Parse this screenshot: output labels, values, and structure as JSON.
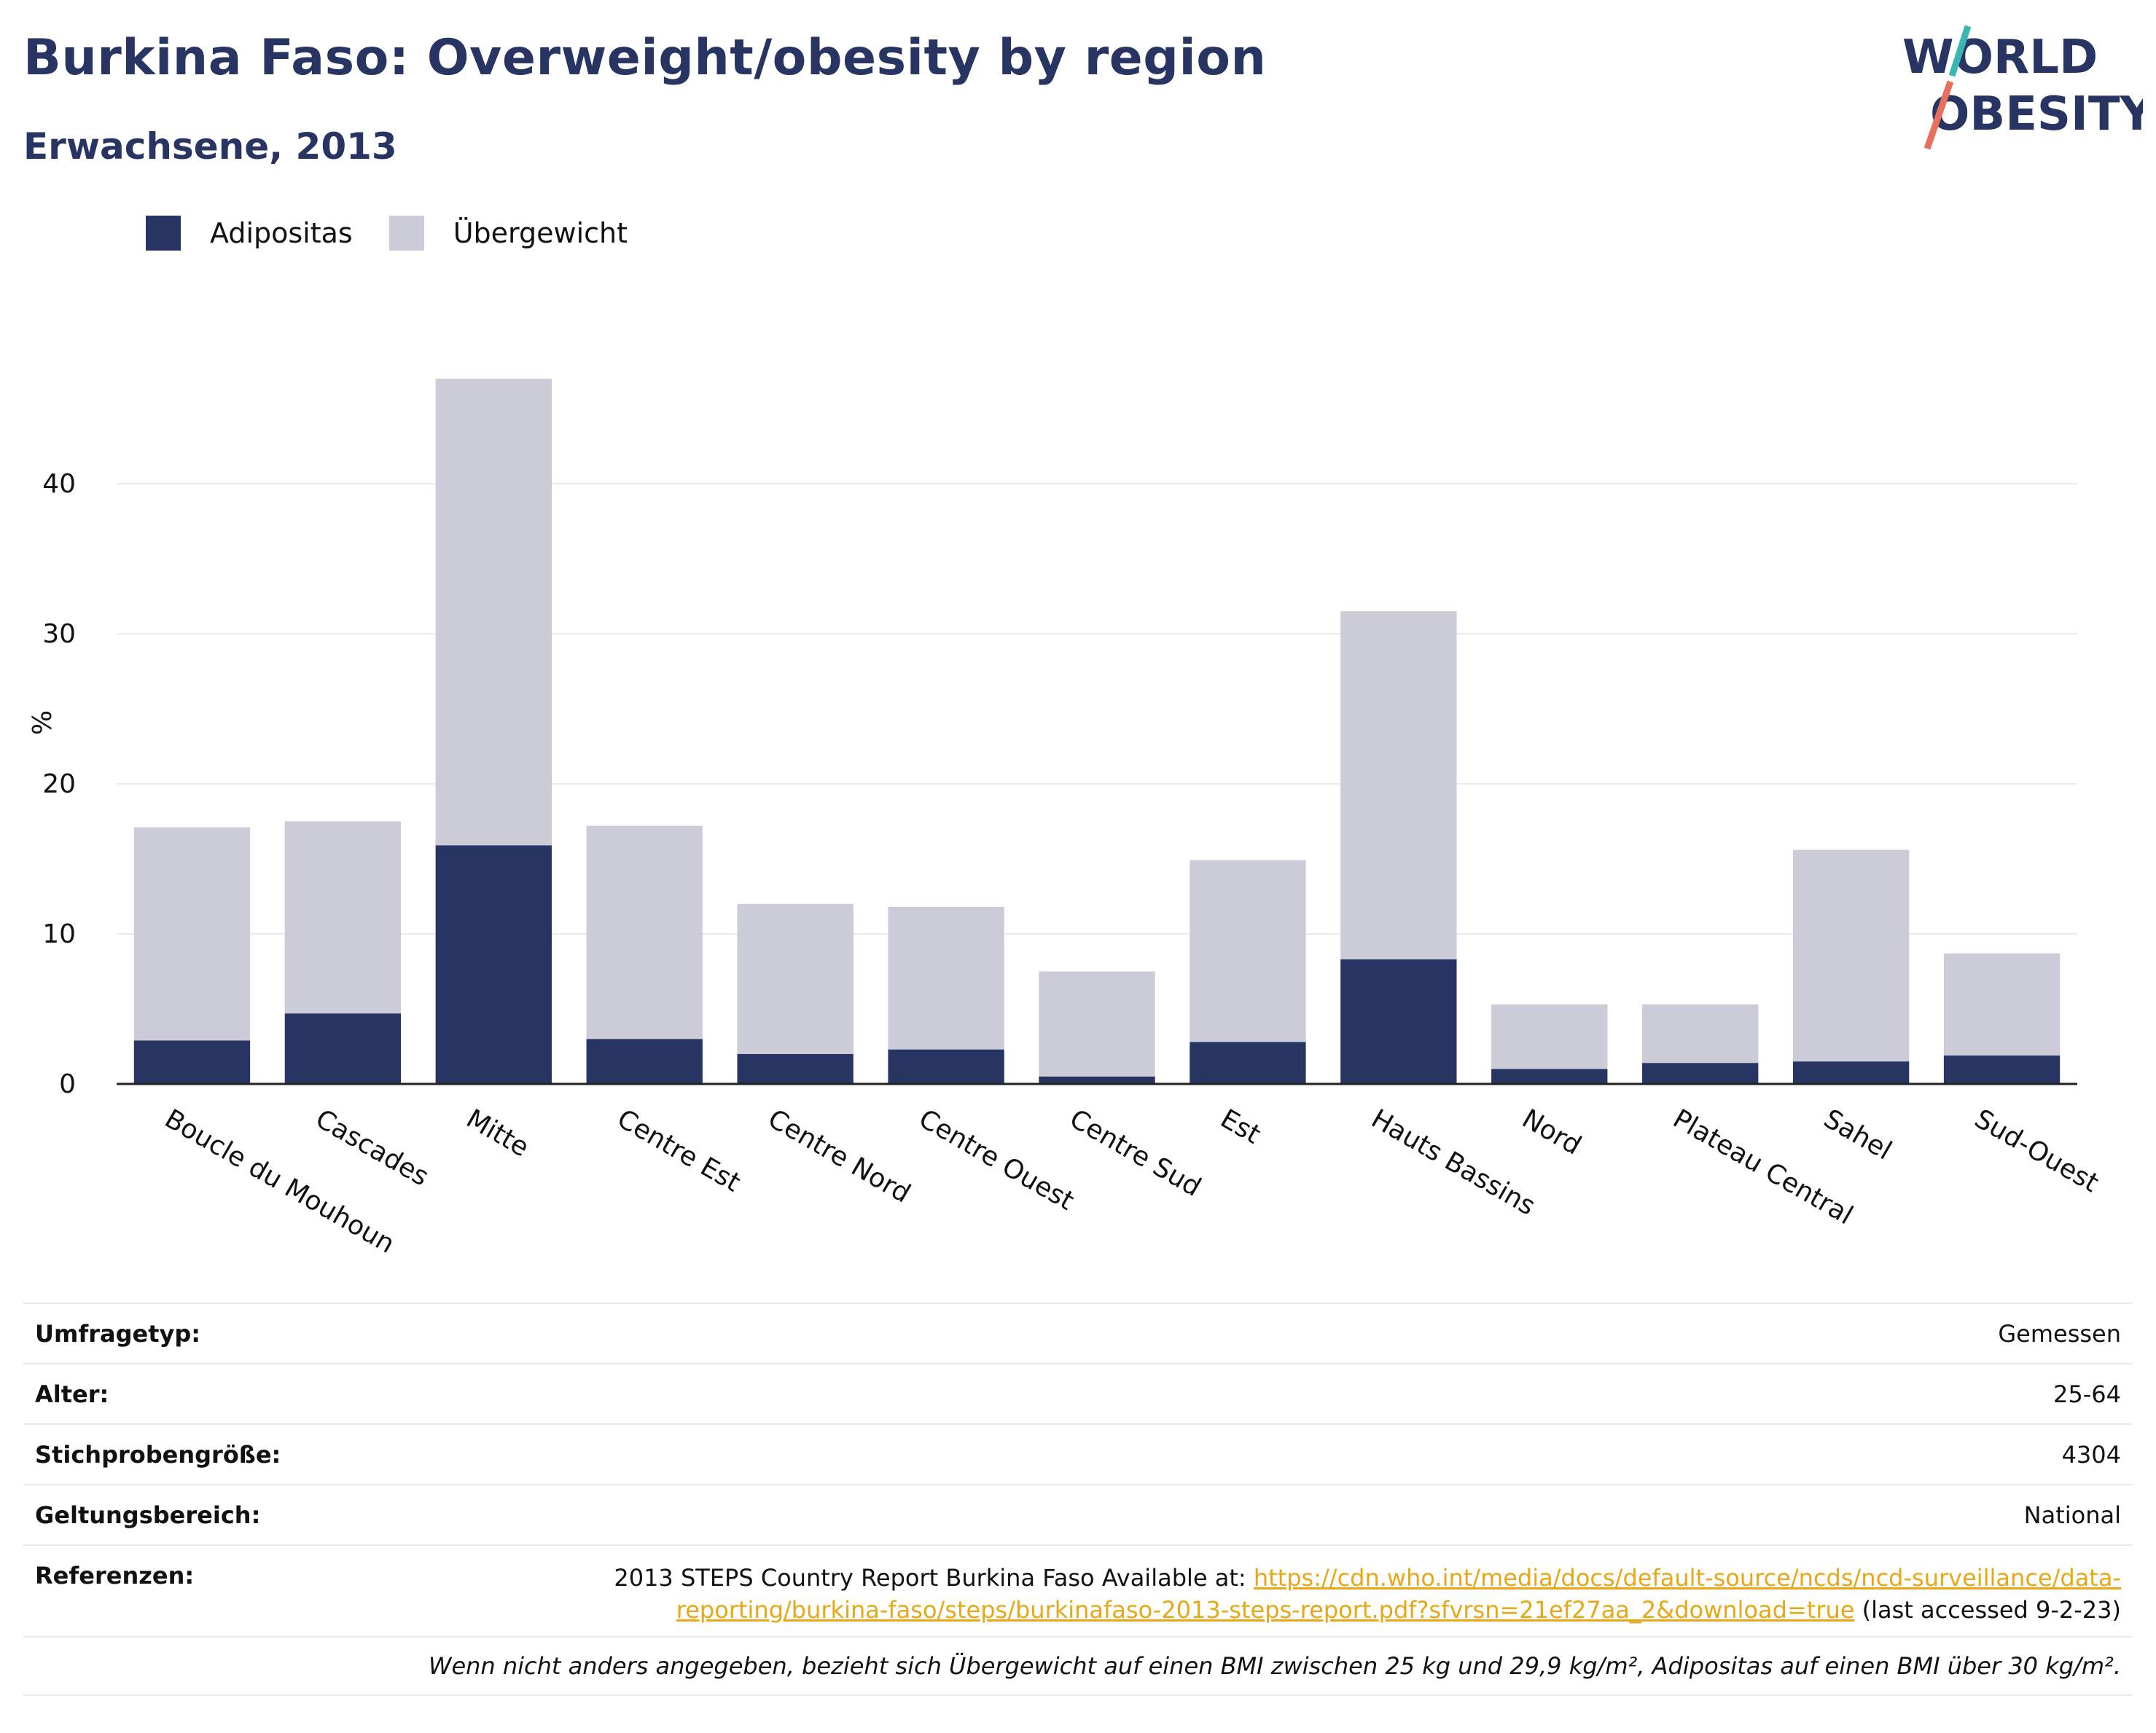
{
  "header": {
    "title": "Burkina Faso: Overweight/obesity by region",
    "subtitle": "Erwachsene, 2013"
  },
  "logo": {
    "line1": "WORLD",
    "line2": "OBESITY"
  },
  "legend": [
    {
      "label": "Adipositas",
      "color": "#283462"
    },
    {
      "label": "Übergewicht",
      "color": "#cbccd8"
    }
  ],
  "chart_data": {
    "type": "bar",
    "stacked": true,
    "categories": [
      "Boucle du Mouhoun",
      "Cascades",
      "Mitte",
      "Centre Est",
      "Centre Nord",
      "Centre Ouest",
      "Centre Sud",
      "Est",
      "Hauts Bassins",
      "Nord",
      "Plateau Central",
      "Sahel",
      "Sud-Ouest"
    ],
    "series": [
      {
        "name": "Adipositas",
        "color": "#283462",
        "values": [
          2.9,
          4.7,
          15.9,
          3.0,
          2.0,
          2.3,
          0.5,
          2.8,
          8.3,
          1.0,
          1.4,
          1.5,
          1.9
        ]
      },
      {
        "name": "Übergewicht",
        "color": "#cbccd8",
        "values": [
          14.2,
          12.8,
          31.1,
          14.2,
          10.0,
          9.5,
          7.0,
          12.1,
          23.2,
          4.3,
          3.9,
          14.1,
          6.8
        ]
      }
    ],
    "ylabel": "%",
    "ylim": [
      0,
      50
    ],
    "yticks": [
      0,
      10,
      20,
      30,
      40
    ],
    "grid": true,
    "legend_position": "top-left"
  },
  "info": {
    "survey_type": {
      "label": "Umfragetyp:",
      "value": "Gemessen"
    },
    "age": {
      "label": "Alter:",
      "value": "25-64"
    },
    "sample_size": {
      "label": "Stichprobengröße:",
      "value": "4304"
    },
    "scope": {
      "label": "Geltungsbereich:",
      "value": "National"
    },
    "references": {
      "label": "Referenzen:",
      "text_before": "2013 STEPS Country Report Burkina Faso Available at: ",
      "link_line1": "https://cdn.who.int/media/docs/default-source/ncds/ncd-surveillance/data-",
      "link_line2": "reporting/burkina-faso/steps/burkinafaso-2013-steps-report.pdf?sfvrsn=21ef27aa_2&download=true",
      "text_after": " (last accessed 9-2-23)"
    },
    "note": "Wenn nicht anders angegeben, bezieht sich Übergewicht auf einen BMI zwischen 25 kg und 29,9 kg/m², Adipositas auf einen BMI über 30 kg/m²."
  }
}
